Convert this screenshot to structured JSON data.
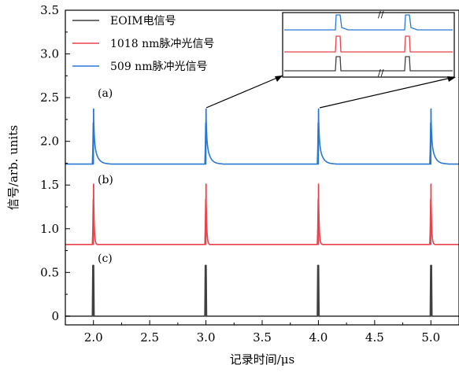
{
  "chart_data": {
    "type": "line",
    "xlabel": "记录时间/μs",
    "ylabel": "信号/arb. units",
    "xlim": [
      1.75,
      5.25
    ],
    "ylim": [
      -0.1,
      3.5
    ],
    "xticks": [
      "2.0",
      "2.5",
      "3.0",
      "3.5",
      "4.0",
      "4.5",
      "5.0"
    ],
    "xtick_values": [
      2.0,
      2.5,
      3.0,
      3.5,
      4.0,
      4.5,
      5.0
    ],
    "yticks": [
      "0",
      "0.5",
      "1.0",
      "1.5",
      "2.0",
      "2.5",
      "3.0",
      "3.5"
    ],
    "ytick_values": [
      0,
      0.5,
      1.0,
      1.5,
      2.0,
      2.5,
      3.0,
      3.5
    ],
    "grid": false,
    "legend_position": "top-left",
    "panel_labels": [
      "(a)",
      "(b)",
      "(c)"
    ],
    "series": [
      {
        "name": "EOIM电信号",
        "color": "#404040",
        "baseline": 0.0,
        "pulse_times": [
          2.0,
          3.0,
          4.0,
          5.0
        ],
        "peak": 0.58,
        "shape": "rectangular"
      },
      {
        "name": "1018 nm脉冲光信号",
        "color": "#e8424a",
        "baseline": 0.82,
        "pulse_times": [
          2.0,
          3.0,
          4.0,
          5.0
        ],
        "peak": 1.51,
        "shape": "spike"
      },
      {
        "name": "509 nm脉冲光信号",
        "color": "#2878d2",
        "baseline": 1.74,
        "pulse_times": [
          2.0,
          3.0,
          4.0,
          5.0
        ],
        "peak": 2.37,
        "shape": "spike-decay"
      }
    ],
    "inset": {
      "description_pulse_times": [
        3.0,
        4.0
      ]
    }
  }
}
